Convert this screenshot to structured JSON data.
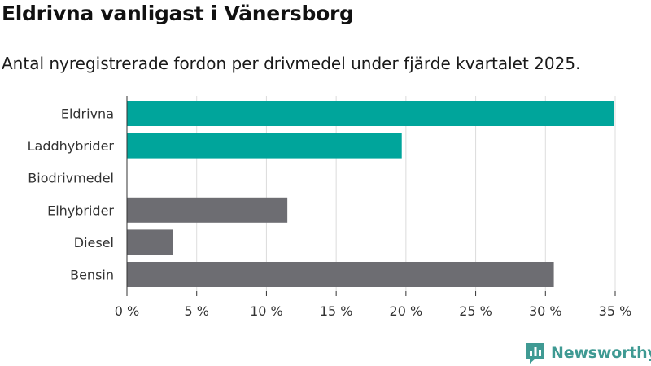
{
  "header": {
    "title": "Eldrivna vanligast i Vänersborg",
    "subtitle": "Antal nyregistrerade fordon per drivmedel under fjärde kvartalet 2025."
  },
  "brand": {
    "name": "Newsworthy",
    "color": "#3f9a93",
    "icon": "newsworthy-chart-bubble-icon"
  },
  "colors": {
    "highlight": "#00a59b",
    "default": "#6d6d72",
    "grid": "#dcdcdc",
    "axis": "#333333"
  },
  "chart_data": {
    "type": "bar",
    "orientation": "horizontal",
    "categories": [
      "Eldrivna",
      "Laddhybrider",
      "Biodrivmedel",
      "Elhybrider",
      "Diesel",
      "Bensin"
    ],
    "values": [
      34.9,
      19.7,
      0,
      11.5,
      3.3,
      30.6
    ],
    "highlighted": [
      true,
      true,
      false,
      false,
      false,
      false
    ],
    "xlim": [
      0,
      35
    ],
    "xticks": [
      0,
      5,
      10,
      15,
      20,
      25,
      30,
      35
    ],
    "tick_suffix": " %",
    "grid": true
  }
}
